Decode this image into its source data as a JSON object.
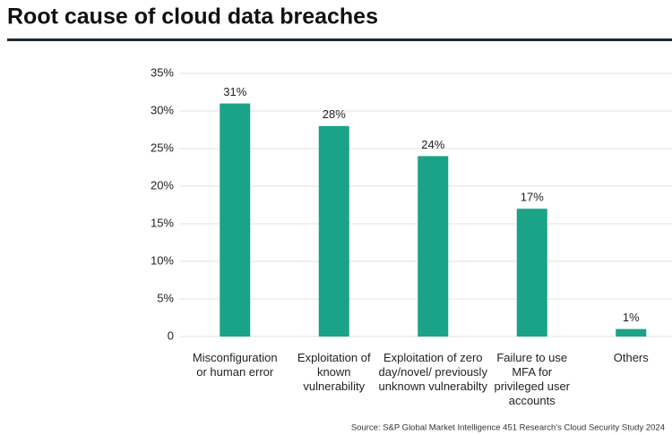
{
  "chart_data": {
    "type": "bar",
    "title": "Root cause of cloud data breaches",
    "source": "Source: S&P Global Market Intelligence 451 Research's Cloud Security Study 2024",
    "categories": [
      "Misconfiguration or human error",
      "Exploitation of known vulnerability",
      "Exploitation of zero day/novel/ previously unknown vulnerabilty",
      "Failure to use MFA for privileged user accounts",
      "Others"
    ],
    "values": [
      31,
      28,
      24,
      17,
      1
    ],
    "value_labels": [
      "31%",
      "28%",
      "24%",
      "17%",
      "1%"
    ],
    "color": "#1aa387",
    "ylim": [
      0,
      35
    ],
    "yticks": [
      0,
      {
        "value": 5,
        "label": "5%"
      },
      {
        "value": 10,
        "label": "10%"
      },
      {
        "value": 15,
        "label": "15%"
      },
      {
        "value": 20,
        "label": "20%"
      },
      {
        "value": 25,
        "label": "25%"
      },
      {
        "value": 30,
        "label": "30%"
      },
      {
        "value": 35,
        "label": "35%"
      }
    ],
    "grid": true
  }
}
